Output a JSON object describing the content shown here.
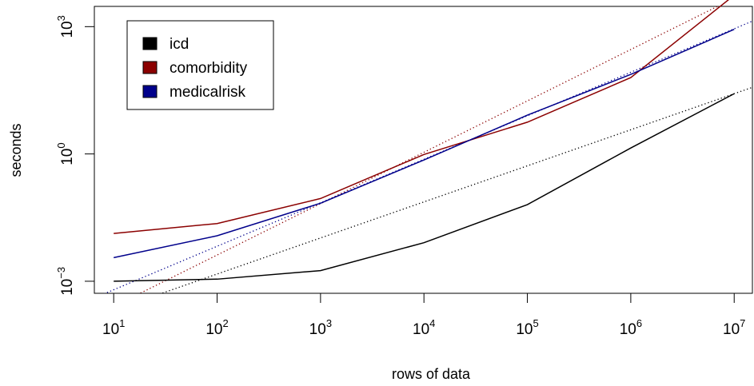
{
  "chart_data": {
    "type": "line",
    "title": "",
    "xlabel": "rows of data",
    "ylabel": "seconds",
    "x_scale": "log10",
    "y_scale": "log10",
    "x": [
      10,
      100,
      1000,
      10000,
      100000,
      1000000,
      10000000
    ],
    "x_ticks": [
      {
        "base": "10",
        "exp": "1"
      },
      {
        "base": "10",
        "exp": "2"
      },
      {
        "base": "10",
        "exp": "3"
      },
      {
        "base": "10",
        "exp": "4"
      },
      {
        "base": "10",
        "exp": "5"
      },
      {
        "base": "10",
        "exp": "6"
      },
      {
        "base": "10",
        "exp": "7"
      }
    ],
    "y_ticks": [
      {
        "base": "10",
        "exp": "−3",
        "value": 0.001
      },
      {
        "base": "10",
        "exp": "0",
        "value": 1
      },
      {
        "base": "10",
        "exp": "3",
        "value": 1000
      }
    ],
    "xlim": [
      6.5,
      15000000
    ],
    "ylim": [
      0.00052,
      3000
    ],
    "grid": false,
    "legend_position": "top-left",
    "series": [
      {
        "name": "icd",
        "color": "#000000",
        "values": [
          0.001,
          0.00112,
          0.00178,
          0.0081,
          0.064,
          1.38,
          26.3
        ],
        "fit": [
          0.000209,
          26.3
        ]
      },
      {
        "name": "comorbidity",
        "color": "#8B0000",
        "values": [
          0.0134,
          0.0229,
          0.089,
          0.97,
          5.6,
          63,
          5495
        ],
        "fit": [
          0.000255,
          4700
        ]
      },
      {
        "name": "medicalrisk",
        "color": "#00008B",
        "values": [
          0.0036,
          0.0118,
          0.069,
          0.72,
          8.2,
          75,
          863
        ],
        "fit": [
          0.00063,
          891
        ]
      }
    ]
  }
}
